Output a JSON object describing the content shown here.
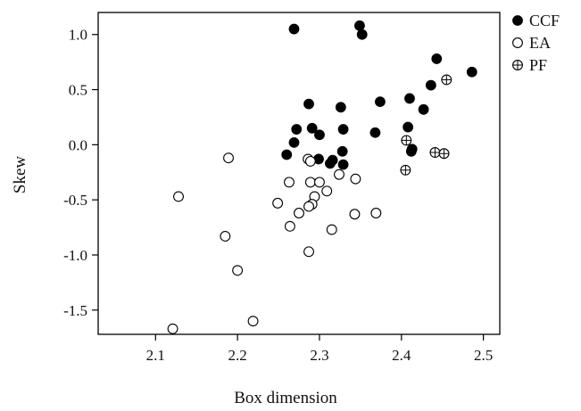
{
  "chart_data": {
    "type": "scatter",
    "title": "",
    "xlabel": "Box dimension",
    "ylabel": "Skew",
    "xlim": [
      2.03,
      2.52
    ],
    "ylim": [
      -1.72,
      1.2
    ],
    "xticks": [
      2.1,
      2.2,
      2.3,
      2.4,
      2.5
    ],
    "xtick_labels": [
      "2.1",
      "2.2",
      "2.3",
      "2.4",
      "2.5"
    ],
    "yticks": [
      -1.5,
      -1.0,
      -0.5,
      0.0,
      0.5,
      1.0
    ],
    "ytick_labels": [
      "-1.5",
      "-1.0",
      "-0.5",
      "0.0",
      "0.5",
      "1.0"
    ],
    "grid": false,
    "legend_position": "outside-top-right",
    "series": [
      {
        "name": "CCF",
        "marker": "filled-circle",
        "color": "#000000",
        "points": [
          [
            2.269,
            1.05
          ],
          [
            2.349,
            1.08
          ],
          [
            2.352,
            1.0
          ],
          [
            2.443,
            0.78
          ],
          [
            2.486,
            0.66
          ],
          [
            2.436,
            0.54
          ],
          [
            2.41,
            0.42
          ],
          [
            2.374,
            0.39
          ],
          [
            2.287,
            0.37
          ],
          [
            2.326,
            0.34
          ],
          [
            2.427,
            0.32
          ],
          [
            2.272,
            0.14
          ],
          [
            2.291,
            0.15
          ],
          [
            2.329,
            0.14
          ],
          [
            2.408,
            0.16
          ],
          [
            2.368,
            0.11
          ],
          [
            2.3,
            0.09
          ],
          [
            2.269,
            0.02
          ],
          [
            2.26,
            -0.09
          ],
          [
            2.328,
            -0.06
          ],
          [
            2.299,
            -0.13
          ],
          [
            2.316,
            -0.14
          ],
          [
            2.313,
            -0.17
          ],
          [
            2.329,
            -0.18
          ],
          [
            2.413,
            -0.04
          ],
          [
            2.412,
            -0.06
          ]
        ]
      },
      {
        "name": "EA",
        "marker": "open-circle",
        "color": "#000000",
        "points": [
          [
            2.189,
            -0.12
          ],
          [
            2.286,
            -0.13
          ],
          [
            2.289,
            -0.15
          ],
          [
            2.263,
            -0.34
          ],
          [
            2.289,
            -0.34
          ],
          [
            2.3,
            -0.34
          ],
          [
            2.324,
            -0.27
          ],
          [
            2.344,
            -0.31
          ],
          [
            2.128,
            -0.47
          ],
          [
            2.309,
            -0.42
          ],
          [
            2.294,
            -0.47
          ],
          [
            2.249,
            -0.53
          ],
          [
            2.291,
            -0.54
          ],
          [
            2.287,
            -0.56
          ],
          [
            2.275,
            -0.62
          ],
          [
            2.343,
            -0.63
          ],
          [
            2.369,
            -0.62
          ],
          [
            2.264,
            -0.74
          ],
          [
            2.315,
            -0.77
          ],
          [
            2.185,
            -0.83
          ],
          [
            2.287,
            -0.97
          ],
          [
            2.2,
            -1.14
          ],
          [
            2.219,
            -1.6
          ],
          [
            2.121,
            -1.67
          ]
        ]
      },
      {
        "name": "PF",
        "marker": "crossed-circle",
        "color": "#000000",
        "points": [
          [
            2.455,
            0.59
          ],
          [
            2.406,
            0.04
          ],
          [
            2.441,
            -0.07
          ],
          [
            2.452,
            -0.08
          ],
          [
            2.405,
            -0.23
          ]
        ]
      }
    ]
  }
}
